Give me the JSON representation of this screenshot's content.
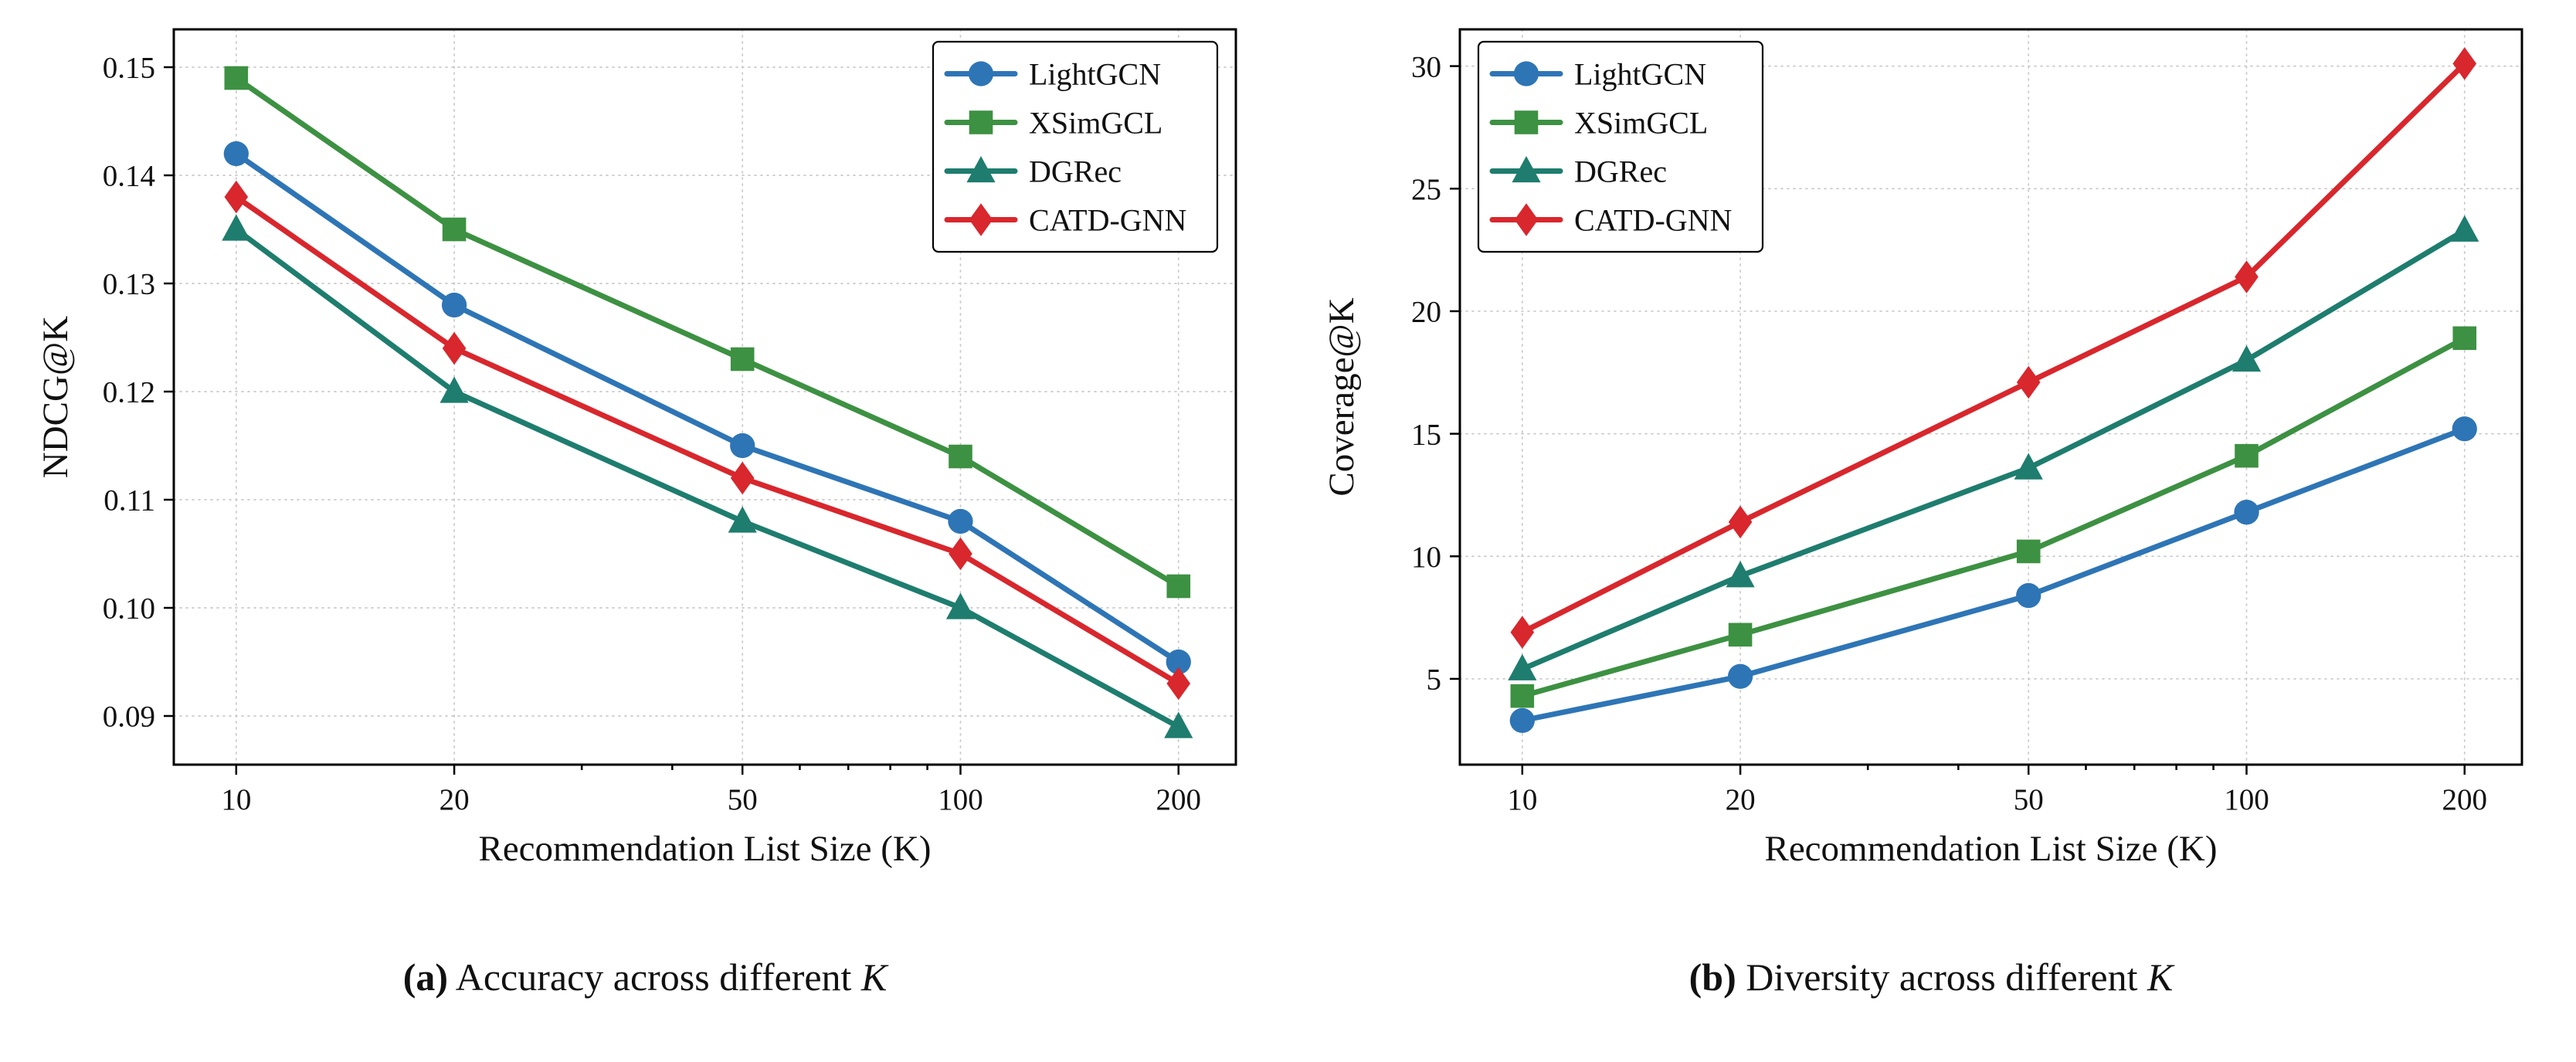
{
  "page": {
    "background": "#ffffff"
  },
  "captions": {
    "a": {
      "prefix": "(a)",
      "text": " Accuracy across different ",
      "k": "K"
    },
    "b": {
      "prefix": "(b)",
      "text": " Diversity across different ",
      "k": "K"
    }
  },
  "palette": {
    "lightgcn": "#2e75b6",
    "xsimgcl": "#3d9142",
    "dgrec": "#1e7d6e",
    "catd_gnn": "#d8272d"
  },
  "chart_data": [
    {
      "type": "line",
      "title": "",
      "xlabel": "Recommendation List Size (K)",
      "ylabel": "NDCG@K",
      "xscale": "log",
      "x": [
        10,
        20,
        50,
        100,
        200
      ],
      "xlim": [
        8.2,
        240
      ],
      "xminor": [
        30,
        40,
        60,
        70,
        80,
        90
      ],
      "ylim": [
        0.0855,
        0.1535
      ],
      "yticks": [
        0.09,
        0.1,
        0.11,
        0.12,
        0.13,
        0.14,
        0.15
      ],
      "ytick_decimals": 2,
      "grid": true,
      "legend_position": "upper right",
      "series": [
        {
          "name": "LightGCN",
          "marker": "circle",
          "color": "#2e75b6",
          "values": [
            0.142,
            0.128,
            0.115,
            0.108,
            0.095
          ]
        },
        {
          "name": "XSimGCL",
          "marker": "square",
          "color": "#3d9142",
          "values": [
            0.149,
            0.135,
            0.123,
            0.114,
            0.102
          ]
        },
        {
          "name": "DGRec",
          "marker": "triangle-up",
          "color": "#1e7d6e",
          "values": [
            0.135,
            0.12,
            0.108,
            0.1,
            0.089
          ]
        },
        {
          "name": "CATD-GNN",
          "marker": "diamond",
          "color": "#d8272d",
          "values": [
            0.138,
            0.124,
            0.112,
            0.105,
            0.093
          ]
        }
      ]
    },
    {
      "type": "line",
      "title": "",
      "xlabel": "Recommendation List Size (K)",
      "ylabel": "Coverage@K",
      "xscale": "log",
      "x": [
        10,
        20,
        50,
        100,
        200
      ],
      "xlim": [
        8.2,
        240
      ],
      "xminor": [
        30,
        40,
        60,
        70,
        80,
        90
      ],
      "ylim": [
        1.5,
        31.5
      ],
      "yticks": [
        5,
        10,
        15,
        20,
        25,
        30
      ],
      "ytick_decimals": 0,
      "grid": true,
      "legend_position": "upper left",
      "series": [
        {
          "name": "LightGCN",
          "marker": "circle",
          "color": "#2e75b6",
          "values": [
            3.3,
            5.1,
            8.4,
            11.8,
            15.2
          ]
        },
        {
          "name": "XSimGCL",
          "marker": "square",
          "color": "#3d9142",
          "values": [
            4.3,
            6.8,
            10.2,
            14.1,
            18.9
          ]
        },
        {
          "name": "DGRec",
          "marker": "triangle-up",
          "color": "#1e7d6e",
          "values": [
            5.4,
            9.2,
            13.6,
            18.0,
            23.3
          ]
        },
        {
          "name": "CATD-GNN",
          "marker": "diamond",
          "color": "#d8272d",
          "values": [
            6.9,
            11.4,
            17.1,
            21.4,
            30.1
          ]
        }
      ]
    }
  ]
}
